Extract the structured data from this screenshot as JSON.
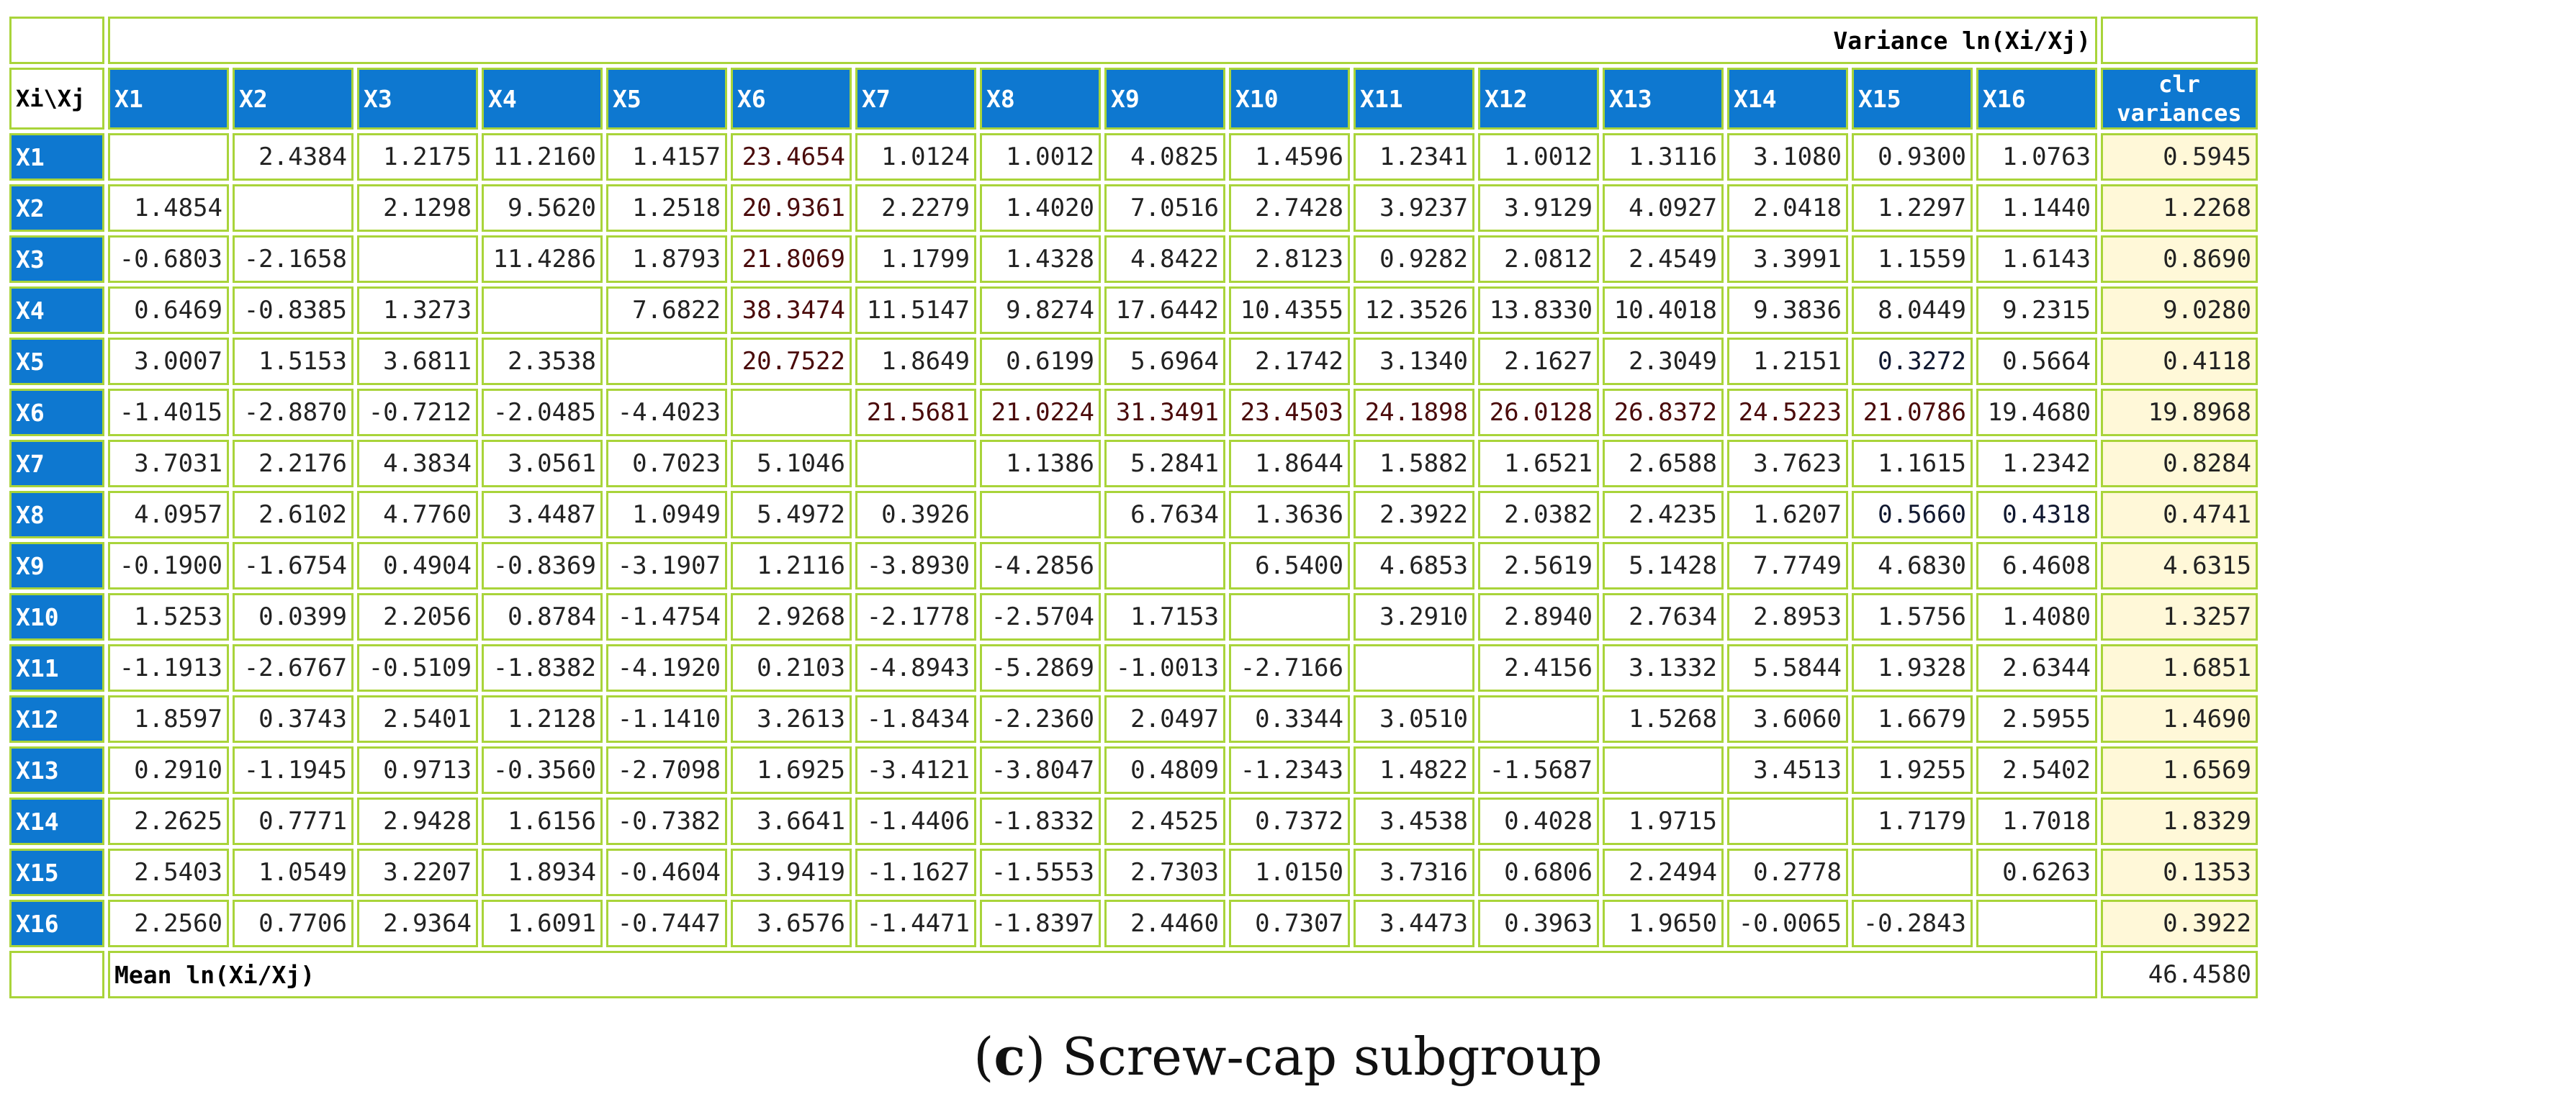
{
  "table": {
    "corner_label": "Xi\\Xj",
    "title": "Variance ln(Xi/Xj)",
    "clr_header": [
      "clr",
      "variances"
    ],
    "mean_label": "Mean ln(Xi/Xj)",
    "mean_value": "46.4580",
    "columns": [
      "X1",
      "X2",
      "X3",
      "X4",
      "X5",
      "X6",
      "X7",
      "X8",
      "X9",
      "X10",
      "X11",
      "X12",
      "X13",
      "X14",
      "X15",
      "X16"
    ],
    "colors": {
      "header_blue": "#0e78d0",
      "border_green": "#a9d43a",
      "clr_yellow": "#fff8d8",
      "light_blue": "#aee2f7",
      "mid_blue": "#2d7fe6",
      "dark_blue": "#1656d4",
      "pink": "#f7c8cd",
      "red": "#e30c0c"
    },
    "rows": [
      {
        "label": "X1",
        "cells": [
          {
            "v": ""
          },
          {
            "v": "2.4384"
          },
          {
            "v": "1.2175",
            "c": "light-blue"
          },
          {
            "v": "11.2160",
            "c": "pink"
          },
          {
            "v": "1.4157",
            "c": "light-blue"
          },
          {
            "v": "23.4654",
            "c": "red"
          },
          {
            "v": "1.0124",
            "c": "light-blue"
          },
          {
            "v": "1.0012",
            "c": "light-blue"
          },
          {
            "v": "4.0825"
          },
          {
            "v": "1.4596",
            "c": "light-blue"
          },
          {
            "v": "1.2341",
            "c": "light-blue"
          },
          {
            "v": "1.0012",
            "c": "light-blue"
          },
          {
            "v": "1.3116",
            "c": "light-blue"
          },
          {
            "v": "3.1080"
          },
          {
            "v": "0.9300",
            "c": "light-blue"
          },
          {
            "v": "1.0763",
            "c": "light-blue"
          }
        ],
        "clr": "0.5945"
      },
      {
        "label": "X2",
        "cells": [
          {
            "v": "1.4854"
          },
          {
            "v": ""
          },
          {
            "v": "2.1298"
          },
          {
            "v": "9.5620",
            "c": "pink"
          },
          {
            "v": "1.2518",
            "c": "light-blue"
          },
          {
            "v": "20.9361",
            "c": "red"
          },
          {
            "v": "2.2279"
          },
          {
            "v": "1.4020",
            "c": "light-blue"
          },
          {
            "v": "7.0516",
            "c": "pink"
          },
          {
            "v": "2.7428"
          },
          {
            "v": "3.9237"
          },
          {
            "v": "3.9129"
          },
          {
            "v": "4.0927"
          },
          {
            "v": "2.0418"
          },
          {
            "v": "1.2297",
            "c": "light-blue"
          },
          {
            "v": "1.1440",
            "c": "light-blue"
          }
        ],
        "clr": "1.2268"
      },
      {
        "label": "X3",
        "cells": [
          {
            "v": "-0.6803"
          },
          {
            "v": "-2.1658"
          },
          {
            "v": ""
          },
          {
            "v": "11.4286",
            "c": "pink"
          },
          {
            "v": "1.8793"
          },
          {
            "v": "21.8069",
            "c": "red"
          },
          {
            "v": "1.1799",
            "c": "light-blue"
          },
          {
            "v": "1.4328",
            "c": "light-blue"
          },
          {
            "v": "4.8422"
          },
          {
            "v": "2.8123"
          },
          {
            "v": "0.9282",
            "c": "light-blue"
          },
          {
            "v": "2.0812"
          },
          {
            "v": "2.4549"
          },
          {
            "v": "3.3991"
          },
          {
            "v": "1.1559",
            "c": "light-blue"
          },
          {
            "v": "1.6143",
            "c": "light-blue"
          }
        ],
        "clr": "0.8690"
      },
      {
        "label": "X4",
        "cells": [
          {
            "v": "0.6469"
          },
          {
            "v": "-0.8385"
          },
          {
            "v": "1.3273"
          },
          {
            "v": ""
          },
          {
            "v": "7.6822",
            "c": "pink"
          },
          {
            "v": "38.3474",
            "c": "red"
          },
          {
            "v": "11.5147",
            "c": "pink"
          },
          {
            "v": "9.8274",
            "c": "pink"
          },
          {
            "v": "17.6442",
            "c": "pink"
          },
          {
            "v": "10.4355",
            "c": "pink"
          },
          {
            "v": "12.3526",
            "c": "pink"
          },
          {
            "v": "13.8330",
            "c": "pink"
          },
          {
            "v": "10.4018",
            "c": "pink"
          },
          {
            "v": "9.3836",
            "c": "pink"
          },
          {
            "v": "8.0449",
            "c": "pink"
          },
          {
            "v": "9.2315",
            "c": "pink"
          }
        ],
        "clr": "9.0280"
      },
      {
        "label": "X5",
        "cells": [
          {
            "v": "3.0007"
          },
          {
            "v": "1.5153"
          },
          {
            "v": "3.6811"
          },
          {
            "v": "2.3538"
          },
          {
            "v": ""
          },
          {
            "v": "20.7522",
            "c": "red"
          },
          {
            "v": "1.8649"
          },
          {
            "v": "0.6199",
            "c": "light-blue"
          },
          {
            "v": "5.6964"
          },
          {
            "v": "2.1742"
          },
          {
            "v": "3.1340"
          },
          {
            "v": "2.1627"
          },
          {
            "v": "2.3049"
          },
          {
            "v": "1.2151",
            "c": "light-blue"
          },
          {
            "v": "0.3272",
            "c": "dark-blue"
          },
          {
            "v": "0.5664",
            "c": "light-blue"
          }
        ],
        "clr": "0.4118"
      },
      {
        "label": "X6",
        "cells": [
          {
            "v": "-1.4015"
          },
          {
            "v": "-2.8870"
          },
          {
            "v": "-0.7212"
          },
          {
            "v": "-2.0485"
          },
          {
            "v": "-4.4023"
          },
          {
            "v": ""
          },
          {
            "v": "21.5681",
            "c": "red"
          },
          {
            "v": "21.0224",
            "c": "red"
          },
          {
            "v": "31.3491",
            "c": "red"
          },
          {
            "v": "23.4503",
            "c": "red"
          },
          {
            "v": "24.1898",
            "c": "red"
          },
          {
            "v": "26.0128",
            "c": "red"
          },
          {
            "v": "26.8372",
            "c": "red"
          },
          {
            "v": "24.5223",
            "c": "red"
          },
          {
            "v": "21.0786",
            "c": "red"
          },
          {
            "v": "19.4680",
            "c": "pink"
          }
        ],
        "clr": "19.8968"
      },
      {
        "label": "X7",
        "cells": [
          {
            "v": "3.7031"
          },
          {
            "v": "2.2176"
          },
          {
            "v": "4.3834"
          },
          {
            "v": "3.0561"
          },
          {
            "v": "0.7023"
          },
          {
            "v": "5.1046"
          },
          {
            "v": ""
          },
          {
            "v": "1.1386",
            "c": "light-blue"
          },
          {
            "v": "5.2841"
          },
          {
            "v": "1.8644"
          },
          {
            "v": "1.5882",
            "c": "light-blue"
          },
          {
            "v": "1.6521"
          },
          {
            "v": "2.6588"
          },
          {
            "v": "3.7623"
          },
          {
            "v": "1.1615",
            "c": "light-blue"
          },
          {
            "v": "1.2342",
            "c": "light-blue"
          }
        ],
        "clr": "0.8284"
      },
      {
        "label": "X8",
        "cells": [
          {
            "v": "4.0957"
          },
          {
            "v": "2.6102"
          },
          {
            "v": "4.7760"
          },
          {
            "v": "3.4487"
          },
          {
            "v": "1.0949"
          },
          {
            "v": "5.4972"
          },
          {
            "v": "0.3926"
          },
          {
            "v": ""
          },
          {
            "v": "6.7634"
          },
          {
            "v": "1.3636",
            "c": "light-blue"
          },
          {
            "v": "2.3922"
          },
          {
            "v": "2.0382"
          },
          {
            "v": "2.4235"
          },
          {
            "v": "1.6207",
            "c": "light-blue"
          },
          {
            "v": "0.5660",
            "c": "dark-blue"
          },
          {
            "v": "0.4318",
            "c": "dark-blue"
          }
        ],
        "clr": "0.4741"
      },
      {
        "label": "X9",
        "cells": [
          {
            "v": "-0.1900"
          },
          {
            "v": "-1.6754"
          },
          {
            "v": "0.4904"
          },
          {
            "v": "-0.8369"
          },
          {
            "v": "-3.1907"
          },
          {
            "v": "1.2116"
          },
          {
            "v": "-3.8930"
          },
          {
            "v": "-4.2856"
          },
          {
            "v": ""
          },
          {
            "v": "6.5400"
          },
          {
            "v": "4.6853"
          },
          {
            "v": "2.5619"
          },
          {
            "v": "5.1428"
          },
          {
            "v": "7.7749",
            "c": "pink"
          },
          {
            "v": "4.6830"
          },
          {
            "v": "6.4608"
          }
        ],
        "clr": "4.6315"
      },
      {
        "label": "X10",
        "cells": [
          {
            "v": "1.5253"
          },
          {
            "v": "0.0399"
          },
          {
            "v": "2.2056"
          },
          {
            "v": "0.8784"
          },
          {
            "v": "-1.4754"
          },
          {
            "v": "2.9268"
          },
          {
            "v": "-2.1778"
          },
          {
            "v": "-2.5704"
          },
          {
            "v": "1.7153"
          },
          {
            "v": ""
          },
          {
            "v": "3.2910"
          },
          {
            "v": "2.8940"
          },
          {
            "v": "2.7634"
          },
          {
            "v": "2.8953"
          },
          {
            "v": "1.5756",
            "c": "light-blue"
          },
          {
            "v": "1.4080",
            "c": "light-blue"
          }
        ],
        "clr": "1.3257"
      },
      {
        "label": "X11",
        "cells": [
          {
            "v": "-1.1913"
          },
          {
            "v": "-2.6767"
          },
          {
            "v": "-0.5109"
          },
          {
            "v": "-1.8382"
          },
          {
            "v": "-4.1920"
          },
          {
            "v": "0.2103"
          },
          {
            "v": "-4.8943"
          },
          {
            "v": "-5.2869"
          },
          {
            "v": "-1.0013"
          },
          {
            "v": "-2.7166"
          },
          {
            "v": ""
          },
          {
            "v": "2.4156"
          },
          {
            "v": "3.1332"
          },
          {
            "v": "5.5844"
          },
          {
            "v": "1.9328"
          },
          {
            "v": "2.6344"
          }
        ],
        "clr": "1.6851"
      },
      {
        "label": "X12",
        "cells": [
          {
            "v": "1.8597"
          },
          {
            "v": "0.3743"
          },
          {
            "v": "2.5401"
          },
          {
            "v": "1.2128"
          },
          {
            "v": "-1.1410"
          },
          {
            "v": "3.2613"
          },
          {
            "v": "-1.8434"
          },
          {
            "v": "-2.2360"
          },
          {
            "v": "2.0497"
          },
          {
            "v": "0.3344"
          },
          {
            "v": "3.0510"
          },
          {
            "v": ""
          },
          {
            "v": "1.5268",
            "c": "light-blue"
          },
          {
            "v": "3.6060"
          },
          {
            "v": "1.6679"
          },
          {
            "v": "2.5955"
          }
        ],
        "clr": "1.4690"
      },
      {
        "label": "X13",
        "cells": [
          {
            "v": "0.2910"
          },
          {
            "v": "-1.1945"
          },
          {
            "v": "0.9713"
          },
          {
            "v": "-0.3560"
          },
          {
            "v": "-2.7098"
          },
          {
            "v": "1.6925"
          },
          {
            "v": "-3.4121"
          },
          {
            "v": "-3.8047"
          },
          {
            "v": "0.4809"
          },
          {
            "v": "-1.2343"
          },
          {
            "v": "1.4822"
          },
          {
            "v": "-1.5687"
          },
          {
            "v": ""
          },
          {
            "v": "3.4513"
          },
          {
            "v": "1.9255"
          },
          {
            "v": "2.5402"
          }
        ],
        "clr": "1.6569"
      },
      {
        "label": "X14",
        "cells": [
          {
            "v": "2.2625"
          },
          {
            "v": "0.7771"
          },
          {
            "v": "2.9428"
          },
          {
            "v": "1.6156"
          },
          {
            "v": "-0.7382"
          },
          {
            "v": "3.6641"
          },
          {
            "v": "-1.4406"
          },
          {
            "v": "-1.8332"
          },
          {
            "v": "2.4525"
          },
          {
            "v": "0.7372"
          },
          {
            "v": "3.4538"
          },
          {
            "v": "0.4028"
          },
          {
            "v": "1.9715"
          },
          {
            "v": ""
          },
          {
            "v": "1.7179"
          },
          {
            "v": "1.7018"
          }
        ],
        "clr": "1.8329"
      },
      {
        "label": "X15",
        "cells": [
          {
            "v": "2.5403"
          },
          {
            "v": "1.0549"
          },
          {
            "v": "3.2207"
          },
          {
            "v": "1.8934"
          },
          {
            "v": "-0.4604"
          },
          {
            "v": "3.9419"
          },
          {
            "v": "-1.1627"
          },
          {
            "v": "-1.5553"
          },
          {
            "v": "2.7303"
          },
          {
            "v": "1.0150"
          },
          {
            "v": "3.7316"
          },
          {
            "v": "0.6806"
          },
          {
            "v": "2.2494"
          },
          {
            "v": "0.2778"
          },
          {
            "v": ""
          },
          {
            "v": "0.6263",
            "c": "light-blue"
          }
        ],
        "clr": "0.1353"
      },
      {
        "label": "X16",
        "cells": [
          {
            "v": "2.2560"
          },
          {
            "v": "0.7706"
          },
          {
            "v": "2.9364"
          },
          {
            "v": "1.6091"
          },
          {
            "v": "-0.7447"
          },
          {
            "v": "3.6576"
          },
          {
            "v": "-1.4471"
          },
          {
            "v": "-1.8397"
          },
          {
            "v": "2.4460"
          },
          {
            "v": "0.7307"
          },
          {
            "v": "3.4473"
          },
          {
            "v": "0.3963"
          },
          {
            "v": "1.9650"
          },
          {
            "v": "-0.0065"
          },
          {
            "v": "-0.2843"
          },
          {
            "v": ""
          }
        ],
        "clr": "0.3922"
      }
    ]
  },
  "caption": {
    "letter": "c",
    "text": " Screw-cap subgroup"
  }
}
